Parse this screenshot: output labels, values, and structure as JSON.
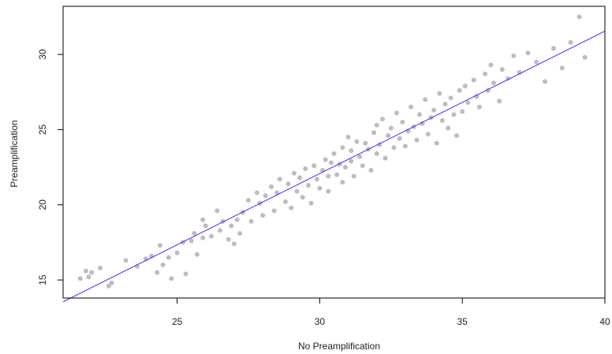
{
  "chart_data": {
    "type": "scatter",
    "title": "",
    "xlabel": "No Preamplification",
    "ylabel": "Preamplification",
    "xlim": [
      21.0,
      40.0
    ],
    "ylim": [
      13.8,
      33.2
    ],
    "xticks": [
      25,
      30,
      35,
      40
    ],
    "yticks": [
      15,
      20,
      25,
      30
    ],
    "grid": false,
    "colors": {
      "points": "#bdbdbd",
      "fit_line": "#3333ff",
      "frame": "#000000"
    },
    "fit_line": {
      "x": [
        21.0,
        40.0
      ],
      "y": [
        13.55,
        31.55
      ]
    },
    "series": [
      {
        "points": [
          [
            21.6,
            15.1
          ],
          [
            21.8,
            15.6
          ],
          [
            21.9,
            15.2
          ],
          [
            22.0,
            15.5
          ],
          [
            22.3,
            15.8
          ],
          [
            22.6,
            14.6
          ],
          [
            22.7,
            14.8
          ],
          [
            23.2,
            16.3
          ],
          [
            23.6,
            15.9
          ],
          [
            23.9,
            16.4
          ],
          [
            24.1,
            16.6
          ],
          [
            24.3,
            15.5
          ],
          [
            24.4,
            17.3
          ],
          [
            24.5,
            16.0
          ],
          [
            24.7,
            16.5
          ],
          [
            24.8,
            15.1
          ],
          [
            25.0,
            16.8
          ],
          [
            25.2,
            17.5
          ],
          [
            25.3,
            15.4
          ],
          [
            25.5,
            17.6
          ],
          [
            25.6,
            18.1
          ],
          [
            25.7,
            16.7
          ],
          [
            25.9,
            17.8
          ],
          [
            25.9,
            19.0
          ],
          [
            26.0,
            18.6
          ],
          [
            26.2,
            17.9
          ],
          [
            26.4,
            19.6
          ],
          [
            26.5,
            18.3
          ],
          [
            26.6,
            18.9
          ],
          [
            26.8,
            17.7
          ],
          [
            26.9,
            18.6
          ],
          [
            27.0,
            17.4
          ],
          [
            27.1,
            19.0
          ],
          [
            27.2,
            18.1
          ],
          [
            27.3,
            19.5
          ],
          [
            27.5,
            20.3
          ],
          [
            27.6,
            18.9
          ],
          [
            27.8,
            20.8
          ],
          [
            27.9,
            20.1
          ],
          [
            28.0,
            19.3
          ],
          [
            28.1,
            20.6
          ],
          [
            28.3,
            21.2
          ],
          [
            28.4,
            19.6
          ],
          [
            28.5,
            20.8
          ],
          [
            28.6,
            21.7
          ],
          [
            28.8,
            20.2
          ],
          [
            28.9,
            21.4
          ],
          [
            29.0,
            19.8
          ],
          [
            29.1,
            22.1
          ],
          [
            29.2,
            20.9
          ],
          [
            29.3,
            21.8
          ],
          [
            29.4,
            20.5
          ],
          [
            29.5,
            22.4
          ],
          [
            29.6,
            21.3
          ],
          [
            29.7,
            20.1
          ],
          [
            29.8,
            22.6
          ],
          [
            29.9,
            21.7
          ],
          [
            30.0,
            21.1
          ],
          [
            30.1,
            22.3
          ],
          [
            30.2,
            23.0
          ],
          [
            30.3,
            21.9
          ],
          [
            30.3,
            20.9
          ],
          [
            30.4,
            22.8
          ],
          [
            30.5,
            23.4
          ],
          [
            30.6,
            22.0
          ],
          [
            30.7,
            22.7
          ],
          [
            30.8,
            21.5
          ],
          [
            30.8,
            23.8
          ],
          [
            30.9,
            22.5
          ],
          [
            31.0,
            24.5
          ],
          [
            31.1,
            22.9
          ],
          [
            31.1,
            23.6
          ],
          [
            31.2,
            21.9
          ],
          [
            31.3,
            24.2
          ],
          [
            31.4,
            23.2
          ],
          [
            31.5,
            22.6
          ],
          [
            31.6,
            24.1
          ],
          [
            31.7,
            23.7
          ],
          [
            31.8,
            22.3
          ],
          [
            31.9,
            24.8
          ],
          [
            32.0,
            23.4
          ],
          [
            32.0,
            25.3
          ],
          [
            32.1,
            24.0
          ],
          [
            32.2,
            25.7
          ],
          [
            32.3,
            23.1
          ],
          [
            32.4,
            24.6
          ],
          [
            32.5,
            25.1
          ],
          [
            32.6,
            23.8
          ],
          [
            32.7,
            26.1
          ],
          [
            32.8,
            24.4
          ],
          [
            32.9,
            25.5
          ],
          [
            33.0,
            23.9
          ],
          [
            33.1,
            24.9
          ],
          [
            33.2,
            26.5
          ],
          [
            33.3,
            25.2
          ],
          [
            33.4,
            24.3
          ],
          [
            33.5,
            26.0
          ],
          [
            33.6,
            25.4
          ],
          [
            33.7,
            27.0
          ],
          [
            33.8,
            24.7
          ],
          [
            33.9,
            25.8
          ],
          [
            34.0,
            26.3
          ],
          [
            34.1,
            24.1
          ],
          [
            34.2,
            27.4
          ],
          [
            34.3,
            25.6
          ],
          [
            34.4,
            26.7
          ],
          [
            34.5,
            25.1
          ],
          [
            34.6,
            27.1
          ],
          [
            34.7,
            26.0
          ],
          [
            34.8,
            24.6
          ],
          [
            34.9,
            27.6
          ],
          [
            35.0,
            26.2
          ],
          [
            35.1,
            27.9
          ],
          [
            35.2,
            26.8
          ],
          [
            35.4,
            28.3
          ],
          [
            35.5,
            27.2
          ],
          [
            35.6,
            26.5
          ],
          [
            35.8,
            28.7
          ],
          [
            35.9,
            27.6
          ],
          [
            36.0,
            29.3
          ],
          [
            36.1,
            28.1
          ],
          [
            36.3,
            26.9
          ],
          [
            36.4,
            29.0
          ],
          [
            36.6,
            28.4
          ],
          [
            36.8,
            29.9
          ],
          [
            37.0,
            28.8
          ],
          [
            37.3,
            30.1
          ],
          [
            37.6,
            29.5
          ],
          [
            37.9,
            28.2
          ],
          [
            38.2,
            30.4
          ],
          [
            38.5,
            29.1
          ],
          [
            38.8,
            30.8
          ],
          [
            39.1,
            32.5
          ],
          [
            39.3,
            29.8
          ]
        ]
      }
    ]
  }
}
